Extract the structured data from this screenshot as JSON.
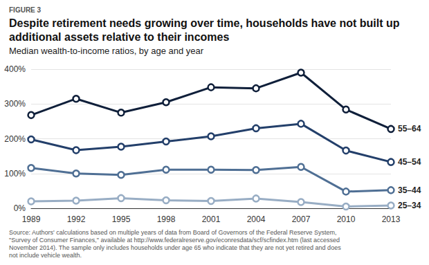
{
  "chart_data": {
    "type": "line",
    "figure_label": "FIGURE 3",
    "title": "Despite retirement needs growing over time, households have not built up additional assets relative to their incomes",
    "subtitle": "Median wealth-to-income ratios, by age and year",
    "source": "Source: Authors' calculations based on multiple years of data from Board of Governors of the Federal Reserve System, \"Survey of Consumer Finances,\" available at http://www.federalreserve.gov/econresdata/scf/scfindex.htm (last accessed November 2014). The sample only includes households under age 65 who indicate that they are not yet retired and does not include vehicle wealth.",
    "categories": [
      "1989",
      "1992",
      "1995",
      "1998",
      "2001",
      "2004",
      "2007",
      "2010",
      "2013"
    ],
    "series": [
      {
        "name": "55–64",
        "color": "#0f1f3a",
        "values": [
          268,
          315,
          275,
          305,
          348,
          345,
          390,
          284,
          228
        ]
      },
      {
        "name": "45–54",
        "color": "#233f6a",
        "values": [
          198,
          167,
          177,
          192,
          207,
          230,
          243,
          166,
          133
        ]
      },
      {
        "name": "35–44",
        "color": "#4f6f94",
        "values": [
          116,
          100,
          96,
          111,
          111,
          110,
          119,
          48,
          52
        ]
      },
      {
        "name": "25–34",
        "color": "#98adc4",
        "values": [
          20,
          22,
          29,
          23,
          21,
          28,
          18,
          5,
          8
        ]
      }
    ],
    "ylim": [
      0,
      400
    ],
    "yticks": [
      {
        "value": 0,
        "label": "0%"
      },
      {
        "value": 100,
        "label": "100%"
      },
      {
        "value": 200,
        "label": "200%"
      },
      {
        "value": 300,
        "label": "300%"
      },
      {
        "value": 400,
        "label": "400%"
      }
    ],
    "grid": true,
    "marker": "circle"
  }
}
